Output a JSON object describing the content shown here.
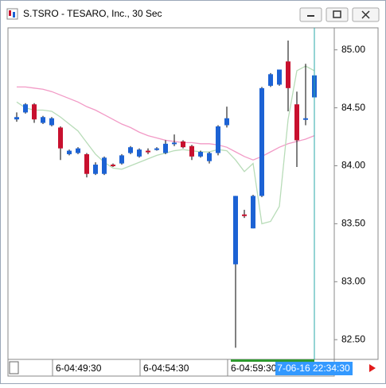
{
  "chart_data": {
    "type": "candlestick",
    "title": "S.TSRO - TESARO, Inc., 30 Sec",
    "categories": [
      null,
      null,
      null,
      null,
      "6-04:49:30",
      null,
      null,
      null,
      null,
      null,
      null,
      null,
      null,
      null,
      "6-04:54:30",
      null,
      null,
      null,
      null,
      null,
      null,
      null,
      null,
      null,
      "6-04:59:30",
      null,
      null,
      null,
      null,
      null,
      null,
      null,
      null,
      null,
      null
    ],
    "cursor_label": "7-06-16 22:34:30",
    "cursor_index": 34,
    "open": [
      84.4,
      84.46,
      84.53,
      84.37,
      84.35,
      84.33,
      84.1,
      84.11,
      84.1,
      83.93,
      83.93,
      84.01,
      84.02,
      84.11,
      84.08,
      84.13,
      84.14,
      84.11,
      84.2,
      84.21,
      84.17,
      84.08,
      84.04,
      84.11,
      84.35,
      83.15,
      83.58,
      83.46,
      83.74,
      84.69,
      84.7,
      84.9,
      84.53,
      84.4,
      84.59
    ],
    "high": [
      84.46,
      84.54,
      84.54,
      84.43,
      84.42,
      84.34,
      84.14,
      84.16,
      84.11,
      84.03,
      84.08,
      84.02,
      84.1,
      84.17,
      84.15,
      84.15,
      84.16,
      84.22,
      84.27,
      84.22,
      84.18,
      84.13,
      84.12,
      84.35,
      84.51,
      83.74,
      83.62,
      83.75,
      84.68,
      84.8,
      84.83,
      85.08,
      84.64,
      84.88,
      84.8
    ],
    "low": [
      84.38,
      84.45,
      84.37,
      84.36,
      84.34,
      84.05,
      84.09,
      84.1,
      83.9,
      83.92,
      83.92,
      83.99,
      84.01,
      84.1,
      84.07,
      84.1,
      84.13,
      84.1,
      84.17,
      84.15,
      84.05,
      84.07,
      84.02,
      84.09,
      84.33,
      82.43,
      83.55,
      83.46,
      83.73,
      84.68,
      84.69,
      84.47,
      83.99,
      84.35,
      84.58
    ],
    "close": [
      84.42,
      84.53,
      84.4,
      84.42,
      84.41,
      84.15,
      84.13,
      84.15,
      83.93,
      84.01,
      84.07,
      84.0,
      84.09,
      84.16,
      84.14,
      84.12,
      84.15,
      84.19,
      84.2,
      84.16,
      84.08,
      84.12,
      84.11,
      84.34,
      84.41,
      83.74,
      83.57,
      83.74,
      84.67,
      84.79,
      84.83,
      84.67,
      84.22,
      84.41,
      84.78
    ],
    "up_color": "#1c62d4",
    "down_color": "#c8102e",
    "lines": [
      {
        "color": "#f29ac6",
        "values": [
          84.68,
          84.68,
          84.67,
          84.66,
          84.64,
          84.61,
          84.58,
          84.55,
          84.51,
          84.48,
          84.44,
          84.4,
          84.36,
          84.33,
          84.29,
          84.26,
          84.24,
          84.22,
          84.21,
          84.2,
          84.2,
          84.19,
          84.19,
          84.18,
          84.16,
          84.12,
          84.08,
          84.05,
          84.08,
          84.12,
          84.16,
          84.19,
          84.21,
          84.23,
          84.26
        ]
      },
      {
        "color": "#b8dcb8",
        "values": [
          84.55,
          84.5,
          84.48,
          84.48,
          84.47,
          84.42,
          84.36,
          84.3,
          84.2,
          84.1,
          84.03,
          83.98,
          83.97,
          84.0,
          84.03,
          84.06,
          84.09,
          84.11,
          84.13,
          84.14,
          84.13,
          84.12,
          84.12,
          84.14,
          84.13,
          84.05,
          83.95,
          84.02,
          83.5,
          83.52,
          83.65,
          84.4,
          84.82,
          84.86,
          84.82
        ]
      }
    ],
    "ylim": [
      82.33,
      85.19
    ],
    "yticks": [
      {
        "value": 82.5,
        "label": "82.50"
      },
      {
        "value": 83,
        "label": "83.00"
      },
      {
        "value": 83.5,
        "label": "83.50"
      },
      {
        "value": 84,
        "label": "84.00"
      },
      {
        "value": 84.5,
        "label": "84.50"
      },
      {
        "value": 85,
        "label": "85.00"
      }
    ],
    "grid": false
  }
}
